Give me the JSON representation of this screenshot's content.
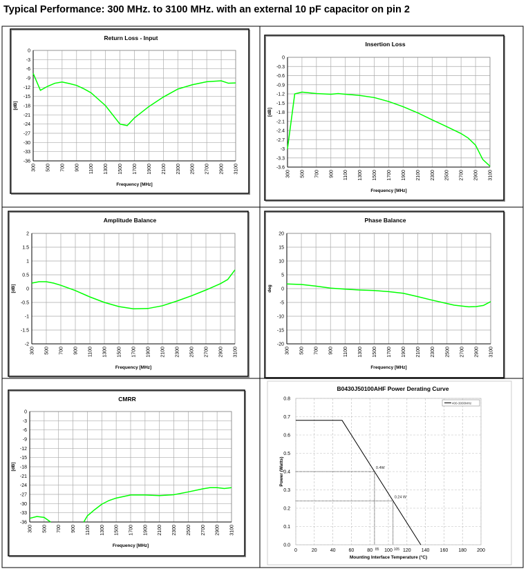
{
  "page_title": "Typical Performance: 300 MHz. to 3100 MHz. with an external 10 pF capacitor on pin 2",
  "chart_data": [
    {
      "id": "rl",
      "type": "line",
      "title": "Return Loss - Input",
      "xlabel": "Frequency [MHz]",
      "ylabel": "[dB]",
      "xlim": [
        300,
        3100
      ],
      "ylim": [
        -36,
        0
      ],
      "xticks": [
        300,
        500,
        700,
        900,
        1100,
        1300,
        1500,
        1700,
        1900,
        2100,
        2300,
        2500,
        2700,
        2900,
        3100
      ],
      "yticks": [
        0,
        -3,
        -6,
        -9,
        -12,
        -15,
        -18,
        -21,
        -24,
        -27,
        -30,
        -33,
        -36
      ],
      "grid": true,
      "line_color": "#00ff00",
      "series": [
        {
          "segments": [
            [
              [
                300,
                -7.5
              ],
              [
                400,
                -13
              ],
              [
                500,
                -11.7
              ],
              [
                600,
                -10.7
              ],
              [
                700,
                -10.3
              ],
              [
                800,
                -10.8
              ],
              [
                900,
                -11.4
              ],
              [
                1000,
                -12.5
              ],
              [
                1100,
                -13.8
              ],
              [
                1300,
                -18
              ],
              [
                1500,
                -24
              ],
              [
                1600,
                -24.5
              ],
              [
                1700,
                -22
              ],
              [
                1900,
                -18.3
              ],
              [
                2100,
                -15.2
              ],
              [
                2300,
                -12.6
              ],
              [
                2500,
                -11.2
              ],
              [
                2700,
                -10.2
              ],
              [
                2900,
                -9.9
              ],
              [
                3000,
                -10.7
              ],
              [
                3100,
                -10.6
              ]
            ]
          ]
        }
      ]
    },
    {
      "id": "il",
      "type": "line",
      "title": "Insertion Loss",
      "xlabel": "Frequency [MHz]",
      "ylabel": "[dB]",
      "xlim": [
        300,
        3100
      ],
      "ylim": [
        -3.6,
        0
      ],
      "xticks": [
        300,
        500,
        700,
        900,
        1100,
        1300,
        1500,
        1700,
        1900,
        2100,
        2300,
        2500,
        2700,
        2900,
        3100
      ],
      "yticks": [
        0,
        -0.3,
        -0.6,
        -0.9,
        -1.2,
        -1.5,
        -1.8,
        -2.1,
        -2.4,
        -2.7,
        -3,
        -3.3,
        -3.6
      ],
      "grid": true,
      "line_color": "#00ff00",
      "series": [
        {
          "segments": [
            [
              [
                300,
                -3
              ],
              [
                400,
                -1.2
              ],
              [
                500,
                -1.14
              ],
              [
                700,
                -1.19
              ],
              [
                900,
                -1.21
              ],
              [
                1000,
                -1.19
              ],
              [
                1100,
                -1.21
              ],
              [
                1300,
                -1.25
              ],
              [
                1500,
                -1.32
              ],
              [
                1700,
                -1.45
              ],
              [
                1900,
                -1.62
              ],
              [
                2100,
                -1.82
              ],
              [
                2300,
                -2.05
              ],
              [
                2500,
                -2.27
              ],
              [
                2700,
                -2.5
              ],
              [
                2800,
                -2.65
              ],
              [
                2900,
                -2.88
              ],
              [
                3000,
                -3.35
              ],
              [
                3100,
                -3.57
              ]
            ]
          ]
        }
      ]
    },
    {
      "id": "ab",
      "type": "line",
      "title": "Amplitude Balance",
      "xlabel": "Frequency [MHz]",
      "ylabel": "[dB]",
      "xlim": [
        300,
        3100
      ],
      "ylim": [
        -2,
        2
      ],
      "xticks": [
        300,
        500,
        700,
        900,
        1100,
        1300,
        1500,
        1700,
        1900,
        2100,
        2300,
        2500,
        2700,
        2900,
        3100
      ],
      "yticks": [
        2,
        1.5,
        1,
        0.5,
        0,
        -0.5,
        -1,
        -1.5,
        -2
      ],
      "grid": true,
      "line_color": "#00ff00",
      "series": [
        {
          "segments": [
            [
              [
                300,
                0.2
              ],
              [
                400,
                0.25
              ],
              [
                500,
                0.25
              ],
              [
                600,
                0.2
              ],
              [
                700,
                0.12
              ],
              [
                900,
                -0.07
              ],
              [
                1100,
                -0.3
              ],
              [
                1300,
                -0.5
              ],
              [
                1500,
                -0.65
              ],
              [
                1700,
                -0.73
              ],
              [
                1900,
                -0.72
              ],
              [
                2100,
                -0.62
              ],
              [
                2300,
                -0.45
              ],
              [
                2500,
                -0.26
              ],
              [
                2700,
                -0.05
              ],
              [
                2900,
                0.18
              ],
              [
                3000,
                0.33
              ],
              [
                3100,
                0.68
              ]
            ]
          ]
        }
      ]
    },
    {
      "id": "pb",
      "type": "line",
      "title": "Phase Balance",
      "xlabel": "Frequency [MHz]",
      "ylabel": "deg",
      "xlim": [
        300,
        3100
      ],
      "ylim": [
        -20,
        20
      ],
      "xticks": [
        300,
        500,
        700,
        900,
        1100,
        1300,
        1500,
        1700,
        1900,
        2100,
        2300,
        2500,
        2700,
        2900,
        3100
      ],
      "yticks": [
        20,
        15,
        10,
        5,
        0,
        -5,
        -10,
        -15,
        -20
      ],
      "grid": true,
      "line_color": "#00ff00",
      "series": [
        {
          "segments": [
            [
              [
                300,
                1.7
              ],
              [
                500,
                1.5
              ],
              [
                700,
                0.9
              ],
              [
                900,
                0.2
              ],
              [
                1100,
                -0.2
              ],
              [
                1300,
                -0.5
              ],
              [
                1500,
                -0.7
              ],
              [
                1700,
                -1.1
              ],
              [
                1900,
                -1.7
              ],
              [
                2100,
                -2.9
              ],
              [
                2300,
                -4.2
              ],
              [
                2500,
                -5.4
              ],
              [
                2600,
                -6.0
              ],
              [
                2800,
                -6.6
              ],
              [
                2900,
                -6.5
              ],
              [
                3000,
                -6.1
              ],
              [
                3100,
                -4.7
              ]
            ]
          ]
        }
      ]
    },
    {
      "id": "cm",
      "type": "line",
      "title": "CMRR",
      "xlabel": "Frequency [MHz]",
      "ylabel": "[dB]",
      "xlim": [
        300,
        3100
      ],
      "ylim": [
        -36,
        0
      ],
      "xticks": [
        300,
        500,
        700,
        900,
        1100,
        1300,
        1500,
        1700,
        1900,
        2100,
        2300,
        2500,
        2700,
        2900,
        3100
      ],
      "yticks": [
        0,
        -3,
        -6,
        -9,
        -12,
        -15,
        -18,
        -21,
        -24,
        -27,
        -30,
        -33,
        -36
      ],
      "grid": true,
      "line_color": "#00ff00",
      "series": [
        {
          "segments": [
            [
              [
                300,
                -34.8
              ],
              [
                400,
                -34.2
              ],
              [
                500,
                -34.5
              ],
              [
                590,
                -36
              ]
            ],
            [
              [
                1050,
                -36
              ],
              [
                1100,
                -34
              ],
              [
                1200,
                -32
              ],
              [
                1300,
                -30.2
              ],
              [
                1400,
                -29
              ],
              [
                1500,
                -28.2
              ],
              [
                1700,
                -27.2
              ],
              [
                1900,
                -27.2
              ],
              [
                2100,
                -27.4
              ],
              [
                2300,
                -27.1
              ],
              [
                2500,
                -26.2
              ],
              [
                2700,
                -25.2
              ],
              [
                2800,
                -24.8
              ],
              [
                2900,
                -24.8
              ],
              [
                3000,
                -25.1
              ],
              [
                3100,
                -24.8
              ]
            ]
          ]
        }
      ]
    },
    {
      "id": "pd",
      "type": "line",
      "title": "B0430J50100AHF Power Derating Curve",
      "xlabel": "Mounting Interface Temperature (°C)",
      "ylabel": "Power (Watts)",
      "xlim": [
        0,
        200
      ],
      "ylim": [
        0,
        0.8
      ],
      "xticks": [
        0,
        20,
        40,
        60,
        80,
        100,
        120,
        140,
        160,
        180,
        200
      ],
      "yticks": [
        0.8,
        0.7,
        0.6,
        0.5,
        0.4,
        0.3,
        0.2,
        0.1,
        0.0
      ],
      "ytick_labels": [
        "0.8",
        "0.7",
        "0.6",
        "0.5",
        "0.4",
        "0.3",
        "0.2",
        "0.1",
        "0.0"
      ],
      "grid": "dashed",
      "line_color": "#000000",
      "legend": {
        "position": "top-right",
        "entries": [
          "400-3000MHz"
        ]
      },
      "series": [
        {
          "name": "400-3000MHz",
          "segments": [
            [
              [
                0,
                0.68
              ],
              [
                50,
                0.68
              ],
              [
                135,
                0
              ]
            ]
          ]
        }
      ],
      "annotations": [
        {
          "text": "0.4W",
          "x": 85,
          "y": 0.4,
          "xlabel": "85"
        },
        {
          "text": "0.24 W",
          "x": 105,
          "y": 0.24,
          "xlabel": "105"
        }
      ]
    }
  ]
}
